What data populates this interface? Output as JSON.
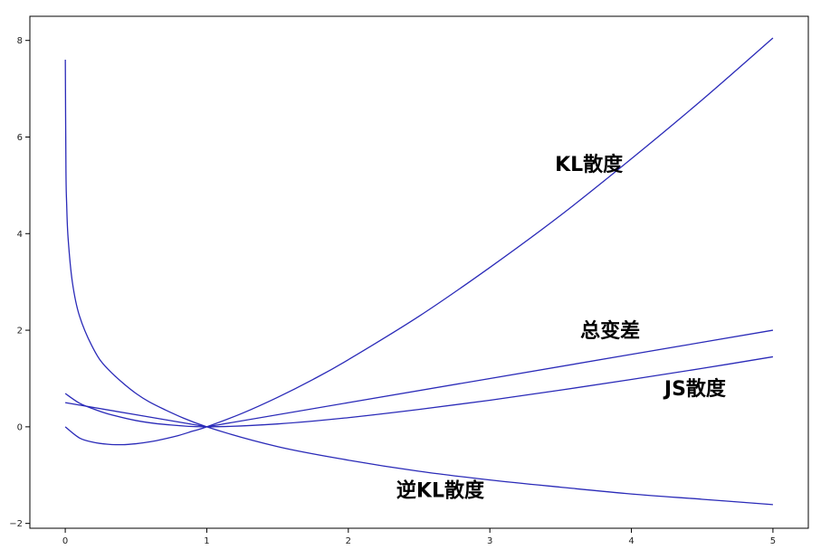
{
  "chart_data": {
    "type": "line",
    "title": "",
    "xlabel": "",
    "ylabel": "",
    "xlim": [
      -0.25,
      5.25
    ],
    "ylim": [
      -2.1,
      8.5
    ],
    "grid": false,
    "legend": "none",
    "line_color": "#2a2ab8",
    "x_ticks": [
      0,
      1,
      2,
      3,
      4,
      5
    ],
    "x_tick_labels": [
      "0",
      "1",
      "2",
      "3",
      "4",
      "5"
    ],
    "y_ticks": [
      -2,
      0,
      2,
      4,
      6,
      8
    ],
    "y_tick_labels": [
      "−2",
      "0",
      "2",
      "4",
      "6",
      "8"
    ],
    "series": [
      {
        "name": "KL散度",
        "x": [
          0,
          0.1,
          0.2,
          0.3,
          0.4,
          0.5,
          0.6,
          0.7,
          0.8,
          0.9,
          1.0,
          1.25,
          1.5,
          1.75,
          2.0,
          2.5,
          3.0,
          3.5,
          4.0,
          4.5,
          5.0
        ],
        "values": [
          0,
          -0.23,
          -0.32,
          -0.36,
          -0.37,
          -0.35,
          -0.31,
          -0.25,
          -0.18,
          -0.09,
          0,
          0.28,
          0.61,
          0.98,
          1.39,
          2.29,
          3.3,
          4.38,
          5.55,
          6.77,
          8.05
        ]
      },
      {
        "name": "逆KL散度",
        "x": [
          0.0005,
          0.005,
          0.01,
          0.02,
          0.05,
          0.1,
          0.2,
          0.3,
          0.5,
          0.7,
          1.0,
          1.5,
          2.0,
          2.5,
          3.0,
          3.5,
          4.0,
          4.5,
          5.0
        ],
        "values": [
          7.6,
          5.3,
          4.61,
          3.91,
          3.0,
          2.3,
          1.61,
          1.2,
          0.69,
          0.36,
          0,
          -0.41,
          -0.69,
          -0.92,
          -1.1,
          -1.25,
          -1.39,
          -1.5,
          -1.61
        ]
      },
      {
        "name": "总变差",
        "x": [
          0,
          0.5,
          1.0,
          2.0,
          3.0,
          4.0,
          5.0
        ],
        "values": [
          0.5,
          0.25,
          0,
          0.5,
          1.0,
          1.5,
          2.0
        ]
      },
      {
        "name": "JS散度",
        "x": [
          0,
          0.1,
          0.2,
          0.3,
          0.5,
          0.7,
          1.0,
          1.5,
          2.0,
          2.5,
          3.0,
          3.5,
          4.0,
          4.5,
          5.0
        ],
        "values": [
          0.69,
          0.49,
          0.37,
          0.27,
          0.13,
          0.05,
          0,
          0.06,
          0.19,
          0.36,
          0.55,
          0.76,
          0.98,
          1.21,
          1.45
        ]
      }
    ],
    "annotations": [
      {
        "series": "KL散度",
        "text": "KL散度",
        "x": 3.7,
        "y": 5.3
      },
      {
        "series": "总变差",
        "text": "总变差",
        "x": 3.85,
        "y": 1.85
      },
      {
        "series": "JS散度",
        "text": "JS散度",
        "x": 4.45,
        "y": 0.65
      },
      {
        "series": "逆KL散度",
        "text": "逆KL散度",
        "x": 2.65,
        "y": -1.45
      }
    ]
  }
}
